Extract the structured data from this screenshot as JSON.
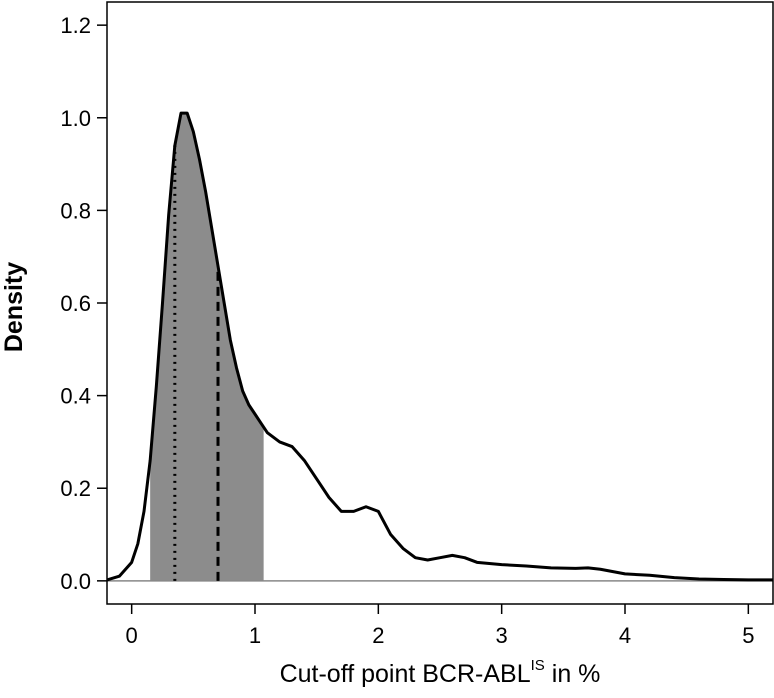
{
  "chart_data": {
    "type": "area",
    "xlabel": {
      "prefix": "Cut-off point BCR-ABL",
      "superscript": "IS",
      "suffix": " in %"
    },
    "ylabel": "Density",
    "xlim": [
      -0.2,
      5.2
    ],
    "ylim": [
      -0.05,
      1.25
    ],
    "x_ticks": [
      0,
      1,
      2,
      3,
      4,
      5
    ],
    "y_ticks": [
      0.0,
      0.2,
      0.4,
      0.6,
      0.8,
      1.0,
      1.2
    ],
    "y_tick_labels": [
      "0.0",
      "0.2",
      "0.4",
      "0.6",
      "0.8",
      "1.0",
      "1.2"
    ],
    "density_curve": {
      "x": [
        -0.2,
        -0.1,
        0.0,
        0.05,
        0.1,
        0.15,
        0.2,
        0.25,
        0.3,
        0.35,
        0.4,
        0.45,
        0.5,
        0.55,
        0.6,
        0.65,
        0.7,
        0.75,
        0.8,
        0.85,
        0.9,
        0.95,
        1.0,
        1.05,
        1.1,
        1.2,
        1.3,
        1.4,
        1.5,
        1.6,
        1.7,
        1.8,
        1.9,
        2.0,
        2.1,
        2.2,
        2.3,
        2.4,
        2.5,
        2.6,
        2.7,
        2.8,
        3.0,
        3.2,
        3.4,
        3.6,
        3.7,
        3.8,
        4.0,
        4.2,
        4.4,
        4.6,
        4.8,
        5.0,
        5.2
      ],
      "y": [
        0.002,
        0.01,
        0.04,
        0.08,
        0.15,
        0.26,
        0.42,
        0.6,
        0.79,
        0.94,
        1.01,
        1.01,
        0.97,
        0.91,
        0.84,
        0.76,
        0.68,
        0.6,
        0.52,
        0.46,
        0.41,
        0.38,
        0.36,
        0.34,
        0.32,
        0.3,
        0.29,
        0.26,
        0.22,
        0.18,
        0.15,
        0.15,
        0.16,
        0.15,
        0.1,
        0.07,
        0.05,
        0.045,
        0.05,
        0.055,
        0.05,
        0.04,
        0.035,
        0.032,
        0.028,
        0.027,
        0.028,
        0.025,
        0.015,
        0.012,
        0.007,
        0.004,
        0.003,
        0.002,
        0.002
      ]
    },
    "shaded_interval": [
      0.15,
      1.07
    ],
    "vlines": [
      {
        "x": 0.35,
        "style": "dotted"
      },
      {
        "x": 0.7,
        "style": "dashed"
      }
    ],
    "colors": {
      "curve": "#000000",
      "shade": "#8c8c8c",
      "baseline": "#888888"
    }
  }
}
